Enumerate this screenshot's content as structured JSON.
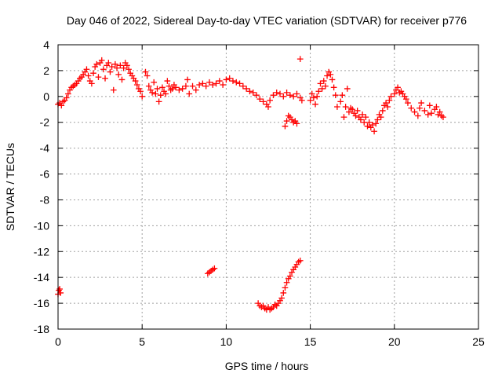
{
  "chart_data": {
    "type": "scatter",
    "title": "Day 046 of 2022, Sidereal Day-to-day VTEC variation (SDTVAR) for receiver p776",
    "xlabel": "GPS time / hours",
    "ylabel": "SDTVAR / TECUs",
    "xlim": [
      0,
      25
    ],
    "ylim": [
      -18,
      4
    ],
    "xticks": [
      0,
      5,
      10,
      15,
      20,
      25
    ],
    "xtick_labels": [
      "0",
      "5",
      "10",
      "15",
      "20",
      "25"
    ],
    "yticks": [
      4,
      2,
      0,
      -2,
      -4,
      -6,
      -8,
      -10,
      -12,
      -14,
      -16,
      -18
    ],
    "ytick_labels": [
      "4",
      "2",
      "0",
      "-2",
      "-4",
      "-6",
      "-8",
      "-10",
      "-12",
      "-14",
      "-16",
      "-18"
    ],
    "grid": true,
    "marker": "+",
    "color": "#ff0000",
    "series": [
      {
        "name": "SDTVAR",
        "points": [
          [
            0.0,
            -0.6
          ],
          [
            0.1,
            -0.5
          ],
          [
            0.2,
            -0.7
          ],
          [
            0.3,
            -0.4
          ],
          [
            0.4,
            -0.3
          ],
          [
            0.5,
            -0.1
          ],
          [
            0.6,
            0.2
          ],
          [
            0.7,
            0.5
          ],
          [
            0.8,
            0.7
          ],
          [
            0.9,
            0.8
          ],
          [
            1.0,
            0.9
          ],
          [
            1.1,
            1.0
          ],
          [
            1.2,
            1.2
          ],
          [
            1.3,
            1.4
          ],
          [
            1.4,
            1.5
          ],
          [
            1.5,
            1.7
          ],
          [
            1.6,
            1.9
          ],
          [
            1.7,
            2.1
          ],
          [
            1.8,
            1.6
          ],
          [
            1.9,
            1.2
          ],
          [
            2.0,
            1.0
          ],
          [
            2.1,
            1.8
          ],
          [
            2.2,
            2.3
          ],
          [
            2.3,
            2.5
          ],
          [
            2.4,
            1.5
          ],
          [
            2.5,
            2.6
          ],
          [
            2.6,
            2.8
          ],
          [
            2.7,
            2.1
          ],
          [
            2.8,
            1.4
          ],
          [
            2.9,
            2.4
          ],
          [
            3.0,
            2.6
          ],
          [
            3.1,
            1.9
          ],
          [
            3.2,
            2.3
          ],
          [
            3.3,
            0.5
          ],
          [
            3.4,
            2.5
          ],
          [
            3.5,
            2.2
          ],
          [
            3.6,
            1.7
          ],
          [
            3.7,
            2.4
          ],
          [
            3.8,
            1.3
          ],
          [
            3.9,
            2.2
          ],
          [
            4.0,
            2.6
          ],
          [
            4.1,
            2.4
          ],
          [
            4.2,
            2.1
          ],
          [
            4.3,
            1.8
          ],
          [
            4.4,
            1.6
          ],
          [
            4.5,
            1.4
          ],
          [
            4.6,
            1.2
          ],
          [
            4.7,
            0.9
          ],
          [
            4.8,
            0.6
          ],
          [
            4.9,
            0.4
          ],
          [
            5.0,
            0.0
          ],
          [
            5.2,
            1.9
          ],
          [
            5.3,
            1.6
          ],
          [
            5.4,
            0.8
          ],
          [
            5.5,
            0.5
          ],
          [
            5.6,
            0.3
          ],
          [
            5.7,
            1.1
          ],
          [
            5.8,
            0.2
          ],
          [
            5.9,
            0.6
          ],
          [
            6.0,
            -0.4
          ],
          [
            6.1,
            0.1
          ],
          [
            6.2,
            0.7
          ],
          [
            6.3,
            0.4
          ],
          [
            6.4,
            0.2
          ],
          [
            6.5,
            1.2
          ],
          [
            6.6,
            0.8
          ],
          [
            6.7,
            0.5
          ],
          [
            6.8,
            0.6
          ],
          [
            6.9,
            0.9
          ],
          [
            7.0,
            0.7
          ],
          [
            7.2,
            0.5
          ],
          [
            7.4,
            0.6
          ],
          [
            7.6,
            0.8
          ],
          [
            7.7,
            1.3
          ],
          [
            7.8,
            0.2
          ],
          [
            8.0,
            0.8
          ],
          [
            8.2,
            0.5
          ],
          [
            8.4,
            0.9
          ],
          [
            8.6,
            1.0
          ],
          [
            8.8,
            0.8
          ],
          [
            9.0,
            1.1
          ],
          [
            9.2,
            0.9
          ],
          [
            9.4,
            1.0
          ],
          [
            9.6,
            1.2
          ],
          [
            9.8,
            0.9
          ],
          [
            10.0,
            1.3
          ],
          [
            10.2,
            1.4
          ],
          [
            10.4,
            1.2
          ],
          [
            10.6,
            1.1
          ],
          [
            10.8,
            1.0
          ],
          [
            11.0,
            0.8
          ],
          [
            11.2,
            0.6
          ],
          [
            11.4,
            0.4
          ],
          [
            11.6,
            0.3
          ],
          [
            11.8,
            0.1
          ],
          [
            12.0,
            -0.2
          ],
          [
            12.2,
            -0.4
          ],
          [
            12.4,
            -0.6
          ],
          [
            12.5,
            -0.8
          ],
          [
            12.6,
            -0.3
          ],
          [
            12.8,
            0.1
          ],
          [
            13.0,
            0.3
          ],
          [
            13.2,
            0.2
          ],
          [
            13.4,
            0.0
          ],
          [
            13.6,
            0.3
          ],
          [
            13.8,
            0.1
          ],
          [
            14.0,
            0.0
          ],
          [
            14.2,
            0.2
          ],
          [
            14.4,
            -0.1
          ],
          [
            14.5,
            -0.3
          ],
          [
            14.4,
            2.9
          ],
          [
            13.5,
            -2.3
          ],
          [
            13.6,
            -1.9
          ],
          [
            13.7,
            -1.5
          ],
          [
            13.8,
            -1.6
          ],
          [
            13.9,
            -1.8
          ],
          [
            14.0,
            -2.0
          ],
          [
            14.1,
            -1.9
          ],
          [
            14.2,
            -2.1
          ],
          [
            15.0,
            -0.3
          ],
          [
            15.1,
            0.2
          ],
          [
            15.2,
            -0.1
          ],
          [
            15.3,
            -0.6
          ],
          [
            15.4,
            0.0
          ],
          [
            15.5,
            0.4
          ],
          [
            15.6,
            1.0
          ],
          [
            15.7,
            0.6
          ],
          [
            15.8,
            1.2
          ],
          [
            15.9,
            0.8
          ],
          [
            16.0,
            1.6
          ],
          [
            16.1,
            1.9
          ],
          [
            16.2,
            1.7
          ],
          [
            16.3,
            1.3
          ],
          [
            16.4,
            0.7
          ],
          [
            16.5,
            0.1
          ],
          [
            16.6,
            -0.8
          ],
          [
            16.8,
            -0.4
          ],
          [
            16.9,
            0.1
          ],
          [
            17.0,
            -1.6
          ],
          [
            17.1,
            -0.8
          ],
          [
            17.2,
            0.6
          ],
          [
            17.3,
            -1.2
          ],
          [
            17.4,
            -0.9
          ],
          [
            17.5,
            -1.0
          ],
          [
            17.6,
            -1.3
          ],
          [
            17.7,
            -1.5
          ],
          [
            17.8,
            -1.1
          ],
          [
            17.9,
            -1.6
          ],
          [
            18.0,
            -1.8
          ],
          [
            18.1,
            -1.4
          ],
          [
            18.2,
            -2.0
          ],
          [
            18.3,
            -1.6
          ],
          [
            18.4,
            -2.3
          ],
          [
            18.5,
            -2.0
          ],
          [
            18.6,
            -2.4
          ],
          [
            18.7,
            -2.2
          ],
          [
            18.8,
            -2.7
          ],
          [
            18.9,
            -2.1
          ],
          [
            19.0,
            -1.8
          ],
          [
            19.1,
            -1.4
          ],
          [
            19.2,
            -1.6
          ],
          [
            19.3,
            -1.1
          ],
          [
            19.4,
            -0.7
          ],
          [
            19.5,
            -0.5
          ],
          [
            19.6,
            -0.8
          ],
          [
            19.7,
            -0.3
          ],
          [
            19.8,
            0.0
          ],
          [
            20.0,
            0.2
          ],
          [
            20.1,
            0.5
          ],
          [
            20.2,
            0.7
          ],
          [
            20.3,
            0.3
          ],
          [
            20.4,
            0.4
          ],
          [
            20.5,
            0.2
          ],
          [
            20.6,
            0.0
          ],
          [
            20.7,
            -0.2
          ],
          [
            20.8,
            -0.5
          ],
          [
            21.0,
            -0.9
          ],
          [
            21.2,
            -1.2
          ],
          [
            21.4,
            -1.5
          ],
          [
            21.5,
            -0.9
          ],
          [
            21.6,
            -0.5
          ],
          [
            21.8,
            -1.1
          ],
          [
            22.0,
            -1.4
          ],
          [
            22.1,
            -0.7
          ],
          [
            22.2,
            -1.3
          ],
          [
            22.4,
            -1.0
          ],
          [
            22.5,
            -0.8
          ],
          [
            22.6,
            -1.4
          ],
          [
            22.7,
            -1.2
          ],
          [
            22.8,
            -1.5
          ],
          [
            22.9,
            -1.6
          ],
          [
            0.0,
            -15.3
          ],
          [
            0.05,
            -15.0
          ],
          [
            0.1,
            -14.9
          ],
          [
            0.15,
            -15.2
          ],
          [
            8.9,
            -13.7
          ],
          [
            9.0,
            -13.6
          ],
          [
            9.1,
            -13.5
          ],
          [
            9.2,
            -13.4
          ],
          [
            9.3,
            -13.3
          ],
          [
            11.9,
            -16.0
          ],
          [
            12.0,
            -16.2
          ],
          [
            12.1,
            -16.3
          ],
          [
            12.2,
            -16.2
          ],
          [
            12.3,
            -16.4
          ],
          [
            12.4,
            -16.5
          ],
          [
            12.5,
            -16.3
          ],
          [
            12.6,
            -16.5
          ],
          [
            12.7,
            -16.4
          ],
          [
            12.8,
            -16.3
          ],
          [
            12.9,
            -16.1
          ],
          [
            13.0,
            -16.2
          ],
          [
            13.1,
            -16.0
          ],
          [
            13.2,
            -15.8
          ],
          [
            13.3,
            -15.6
          ],
          [
            13.4,
            -15.2
          ],
          [
            13.5,
            -14.8
          ],
          [
            13.6,
            -14.4
          ],
          [
            13.7,
            -14.1
          ],
          [
            13.8,
            -13.9
          ],
          [
            13.9,
            -13.6
          ],
          [
            14.0,
            -13.4
          ],
          [
            14.1,
            -13.2
          ],
          [
            14.2,
            -13.0
          ],
          [
            14.3,
            -12.8
          ],
          [
            14.4,
            -12.7
          ]
        ]
      }
    ]
  }
}
